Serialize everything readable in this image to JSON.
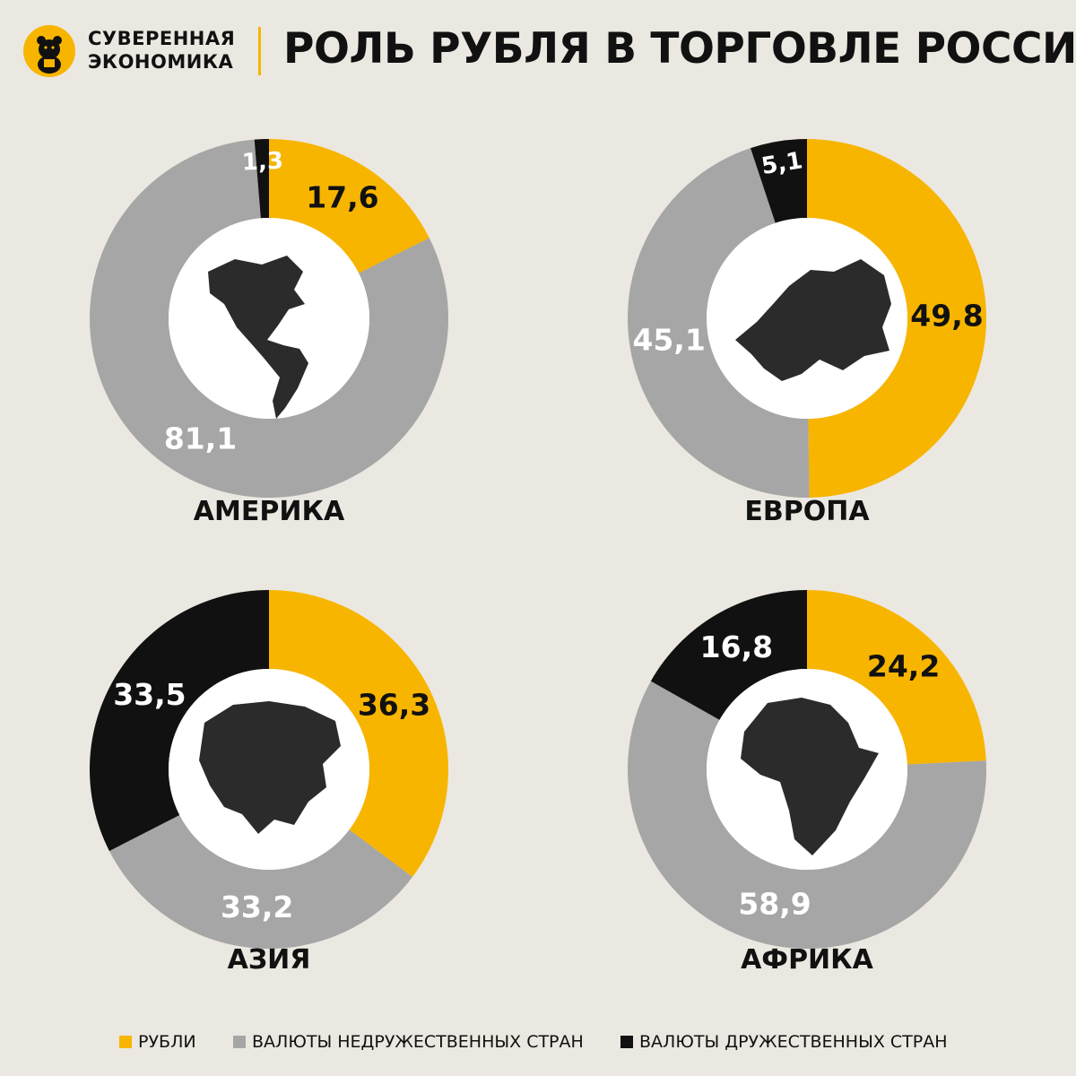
{
  "header": {
    "brand_line1": "СУВЕРЕННАЯ",
    "brand_line2": "ЭКОНОМИКА",
    "title": "РОЛЬ РУБЛЯ В ТОРГОВЛЕ РОССИИ",
    "logo_icon": "bear-icon"
  },
  "colors": {
    "background": "#ebe8e1",
    "rubles": "#f7b500",
    "unfriendly": "#a6a6a6",
    "friendly": "#111111",
    "accent": "#f7b500"
  },
  "legend": {
    "rubles": "РУБЛИ",
    "unfriendly": "ВАЛЮТЫ НЕДРУЖЕСТВЕННЫХ СТРАН",
    "friendly": "ВАЛЮТЫ ДРУЖЕСТВЕННЫХ СТРАН"
  },
  "chart_data": [
    {
      "type": "pie",
      "title": "АМЕРИКА",
      "map_icon": "americas-map-icon",
      "slices": [
        {
          "key": "rubles",
          "label": "17,6",
          "value": 17.6
        },
        {
          "key": "unfriendly",
          "label": "81,1",
          "value": 81.1
        },
        {
          "key": "friendly",
          "label": "1,3",
          "value": 1.3
        }
      ]
    },
    {
      "type": "pie",
      "title": "ЕВРОПА",
      "map_icon": "europe-map-icon",
      "slices": [
        {
          "key": "rubles",
          "label": "49,8",
          "value": 49.8
        },
        {
          "key": "unfriendly",
          "label": "45,1",
          "value": 45.1
        },
        {
          "key": "friendly",
          "label": "5,1",
          "value": 5.1
        }
      ]
    },
    {
      "type": "pie",
      "title": "АЗИЯ",
      "map_icon": "asia-map-icon",
      "slices": [
        {
          "key": "rubles",
          "label": "36,3",
          "value": 36.3
        },
        {
          "key": "unfriendly",
          "label": "33,2",
          "value": 33.2
        },
        {
          "key": "friendly",
          "label": "33,5",
          "value": 33.5
        }
      ]
    },
    {
      "type": "pie",
      "title": "АФРИКА",
      "map_icon": "africa-map-icon",
      "slices": [
        {
          "key": "rubles",
          "label": "24,2",
          "value": 24.2
        },
        {
          "key": "unfriendly",
          "label": "58,9",
          "value": 58.9
        },
        {
          "key": "friendly",
          "label": "16,8",
          "value": 16.8
        }
      ]
    }
  ]
}
